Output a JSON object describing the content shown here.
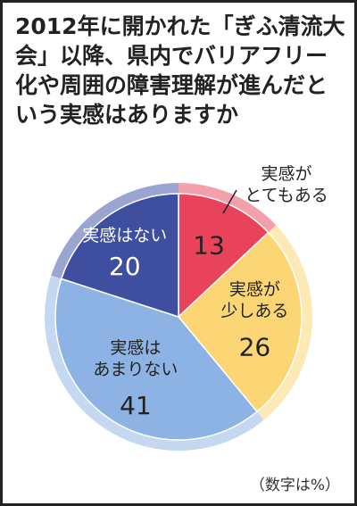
{
  "chart_data": {
    "type": "pie",
    "title": "2012年に開かれた「ぎふ清流大会」以降、県内でバリアフリー化や周囲の障害理解が進んだという実感はありますか",
    "categories": [
      "実感が\nとてもある",
      "実感が\n少しある",
      "実感は\nあまりない",
      "実感はない"
    ],
    "values": [
      13,
      26,
      41,
      20
    ],
    "colors": [
      "#e8435a",
      "#fcd674",
      "#8db2e4",
      "#3f4f9f"
    ],
    "rim_colors": [
      "#f3a0aa",
      "#fde9b6",
      "#c5d8f1",
      "#9aa5d2"
    ],
    "note": "（数字は%）"
  }
}
